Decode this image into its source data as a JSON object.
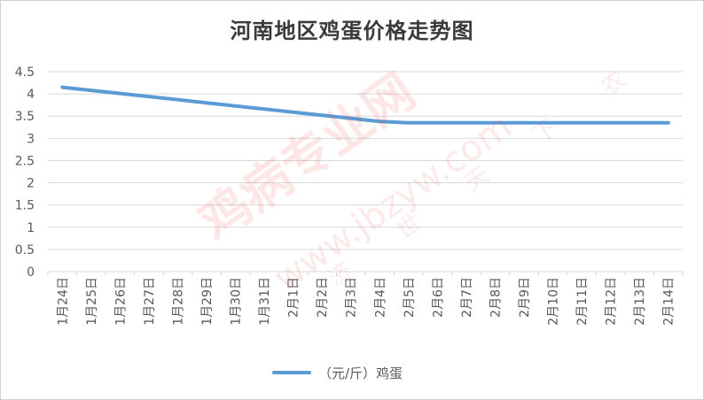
{
  "chart_data": {
    "type": "line",
    "title": "河南地区鸡蛋价格走势图",
    "categories": [
      "1月24日",
      "1月25日",
      "1月26日",
      "1月27日",
      "1月28日",
      "1月29日",
      "1月30日",
      "1月31日",
      "2月1日",
      "2月2日",
      "2月3日",
      "2月4日",
      "2月5日",
      "2月6日",
      "2月7日",
      "2月8日",
      "2月9日",
      "2月10日",
      "2月11日",
      "2月12日",
      "2月13日",
      "2月14日"
    ],
    "series": [
      {
        "name": "（元/斤）鸡蛋",
        "color": "#5b9bd5",
        "values": [
          4.15,
          4.08,
          4.01,
          3.94,
          3.87,
          3.8,
          3.73,
          3.66,
          3.59,
          3.52,
          3.45,
          3.38,
          3.35,
          3.35,
          3.35,
          3.35,
          3.35,
          3.35,
          3.35,
          3.35,
          3.35,
          3.35
        ]
      }
    ],
    "yticks": [
      "0",
      "0.5",
      "1",
      "1.5",
      "2",
      "2.5",
      "3",
      "3.5",
      "4",
      "4.5"
    ],
    "ylim": [
      0,
      4.5
    ],
    "grid": true,
    "legend": "bottom"
  },
  "watermark": {
    "brand": "鸡病专业网",
    "url": "www.jbzyw.com",
    "slogan": "济 世 天 下 农"
  },
  "colors": {
    "grid": "#d9d9d9",
    "axis_text": "#595959",
    "line": "#5b9bd5"
  }
}
